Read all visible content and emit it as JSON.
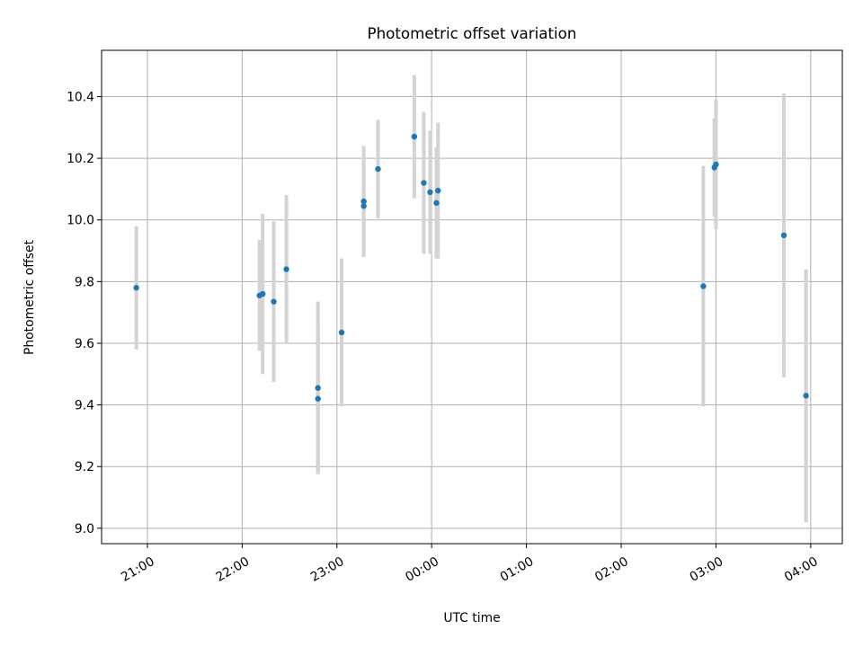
{
  "chart_data": {
    "type": "scatter",
    "title": "Photometric offset variation",
    "xlabel": "UTC time",
    "ylabel": "Photometric offset",
    "x_axis": {
      "type": "time",
      "range": [
        "20:31",
        "04:20"
      ],
      "ticks": [
        "21:00",
        "22:00",
        "23:00",
        "00:00",
        "01:00",
        "02:00",
        "03:00",
        "04:00"
      ]
    },
    "y_axis": {
      "range": [
        8.95,
        10.55
      ],
      "ticks": [
        "9.0",
        "9.2",
        "9.4",
        "9.6",
        "9.8",
        "10.0",
        "10.2",
        "10.4"
      ]
    },
    "grid": true,
    "marker_color": "#1f77b4",
    "errorbar_color": "#d3d3d3",
    "points": [
      {
        "time": "20:53",
        "y": 9.78,
        "err": 0.2
      },
      {
        "time": "22:11",
        "y": 9.755,
        "err": 0.18
      },
      {
        "time": "22:13",
        "y": 9.76,
        "err": 0.26
      },
      {
        "time": "22:20",
        "y": 9.735,
        "err": 0.26
      },
      {
        "time": "22:28",
        "y": 9.84,
        "err": 0.24
      },
      {
        "time": "22:48",
        "y": 9.455,
        "err": 0.28
      },
      {
        "time": "22:48",
        "y": 9.42,
        "err": 0.24
      },
      {
        "time": "23:03",
        "y": 9.635,
        "err": 0.24
      },
      {
        "time": "23:17",
        "y": 10.045,
        "err": 0.14
      },
      {
        "time": "23:17",
        "y": 10.06,
        "err": 0.18
      },
      {
        "time": "23:26",
        "y": 10.165,
        "err": 0.16
      },
      {
        "time": "23:49",
        "y": 10.27,
        "err": 0.2
      },
      {
        "time": "23:55",
        "y": 10.12,
        "err": 0.23
      },
      {
        "time": "23:59",
        "y": 10.09,
        "err": 0.2
      },
      {
        "time": "00:03",
        "y": 10.055,
        "err": 0.18
      },
      {
        "time": "00:04",
        "y": 10.095,
        "err": 0.22
      },
      {
        "time": "02:52",
        "y": 9.785,
        "err": 0.39
      },
      {
        "time": "02:59",
        "y": 10.17,
        "err": 0.16
      },
      {
        "time": "03:00",
        "y": 10.18,
        "err": 0.21
      },
      {
        "time": "03:43",
        "y": 9.95,
        "err": 0.46
      },
      {
        "time": "03:57",
        "y": 9.43,
        "err": 0.41
      }
    ]
  }
}
